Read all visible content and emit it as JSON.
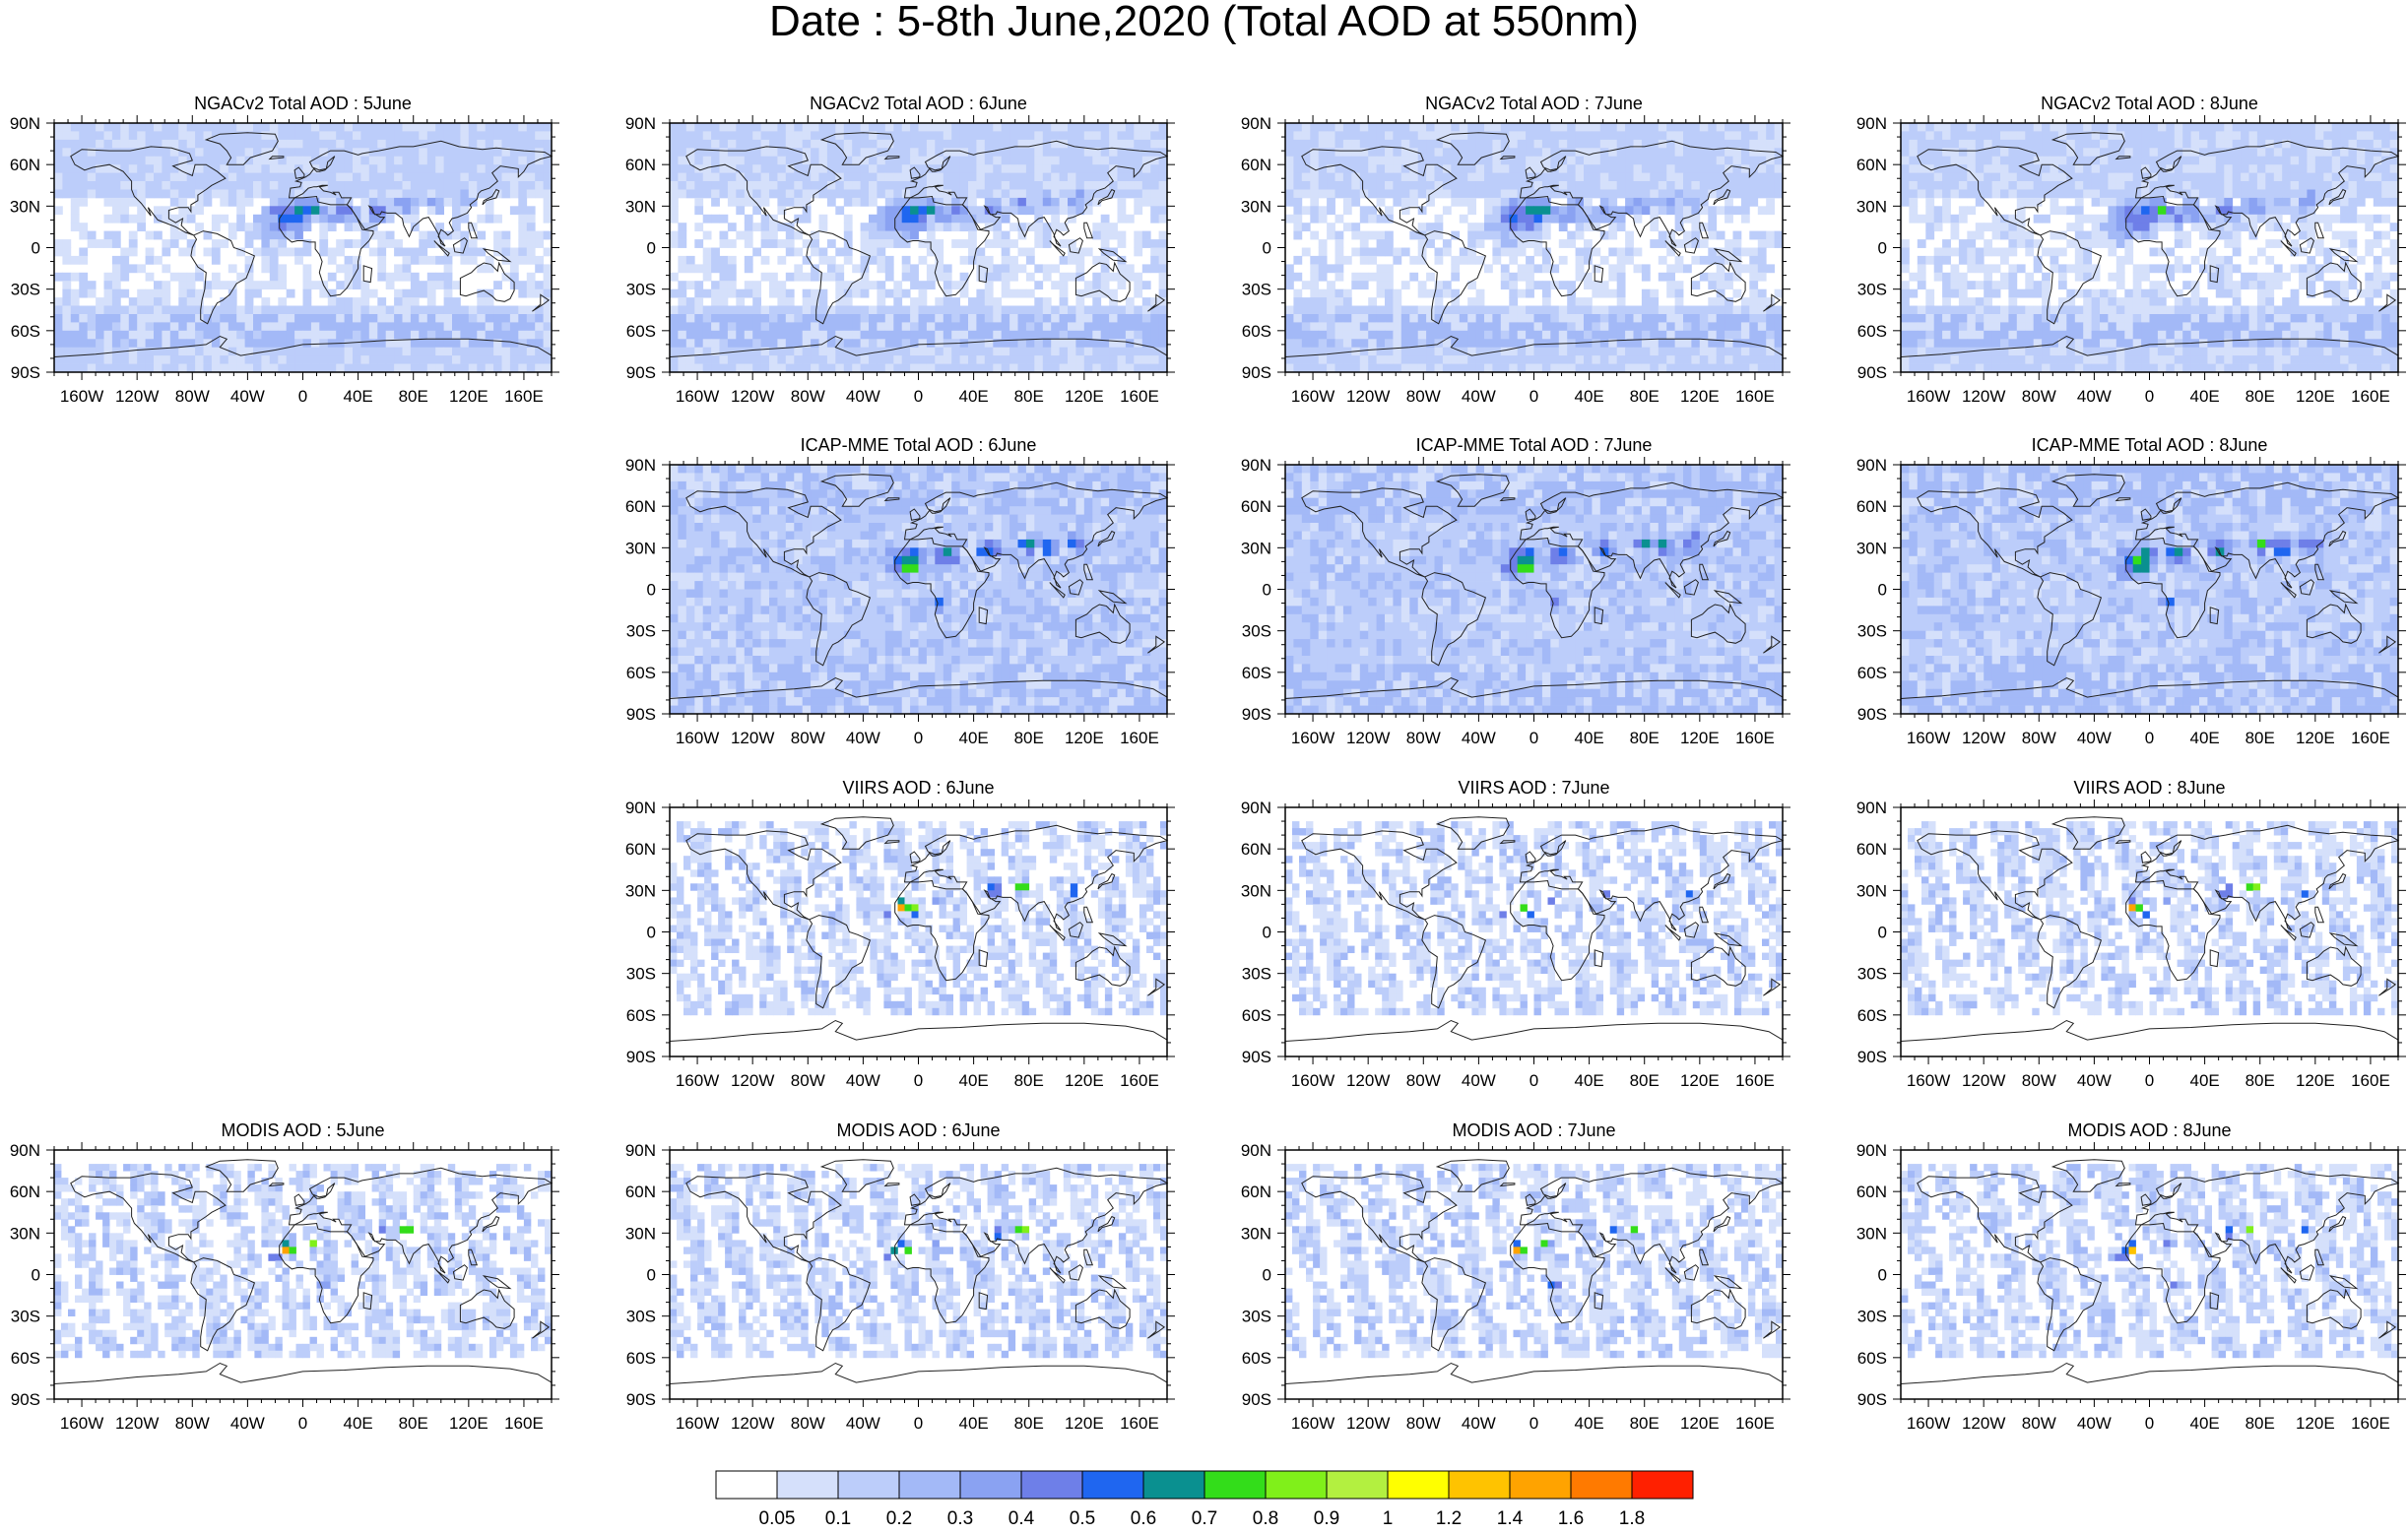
{
  "title": "Date : 5-8th June,2020 (Total AOD at 550nm)",
  "axes": {
    "lat_ticks": [
      "90N",
      "60N",
      "30N",
      "0",
      "30S",
      "60S",
      "90S"
    ],
    "lon_ticks": [
      "160W",
      "120W",
      "80W",
      "40W",
      "0",
      "40E",
      "80E",
      "120E",
      "160E"
    ],
    "lon_values": [
      -160,
      -120,
      -80,
      -40,
      0,
      40,
      80,
      120,
      160
    ],
    "lat_values": [
      90,
      60,
      30,
      0,
      -30,
      -60,
      -90
    ]
  },
  "colors": {
    "levels": [
      "#ffffff",
      "#d5e0fb",
      "#bccdfa",
      "#a3b9f7",
      "#8aa2f2",
      "#6e7fe8",
      "#1f66f0",
      "#0a9090",
      "#33dd1a",
      "#80f01a",
      "#b3f040",
      "#ffff00",
      "#ffc300",
      "#ffa300",
      "#ff7a00",
      "#ff2000"
    ],
    "coast": "#222222"
  },
  "colorbar": {
    "labels": [
      "0.05",
      "0.1",
      "0.2",
      "0.3",
      "0.4",
      "0.5",
      "0.6",
      "0.7",
      "0.8",
      "0.9",
      "1",
      "1.2",
      "1.4",
      "1.6",
      "1.8"
    ]
  },
  "panels": [
    {
      "id": "ngac-5",
      "title": "NGACv2 Total AOD : 5June",
      "type": "model"
    },
    {
      "id": "ngac-6",
      "title": "NGACv2 Total AOD : 6June",
      "type": "model"
    },
    {
      "id": "ngac-7",
      "title": "NGACv2 Total AOD : 7June",
      "type": "model"
    },
    {
      "id": "ngac-8",
      "title": "NGACv2 Total AOD : 8June",
      "type": "model"
    },
    {
      "id": "icap-6",
      "title": "ICAP-MME Total AOD : 6June",
      "type": "ensemble"
    },
    {
      "id": "icap-7",
      "title": "ICAP-MME Total AOD : 7June",
      "type": "ensemble"
    },
    {
      "id": "icap-8",
      "title": "ICAP-MME Total AOD : 8June",
      "type": "ensemble"
    },
    {
      "id": "viirs-6",
      "title": "VIIRS AOD : 6June",
      "type": "satellite"
    },
    {
      "id": "viirs-7",
      "title": "VIIRS AOD : 7June",
      "type": "satellite"
    },
    {
      "id": "viirs-8",
      "title": "VIIRS AOD : 8June",
      "type": "satellite"
    },
    {
      "id": "modis-5",
      "title": "MODIS AOD : 5June",
      "type": "satellite"
    },
    {
      "id": "modis-6",
      "title": "MODIS AOD : 6June",
      "type": "satellite"
    },
    {
      "id": "modis-7",
      "title": "MODIS AOD : 7June",
      "type": "satellite"
    },
    {
      "id": "modis-8",
      "title": "MODIS AOD : 8June",
      "type": "satellite"
    }
  ]
}
